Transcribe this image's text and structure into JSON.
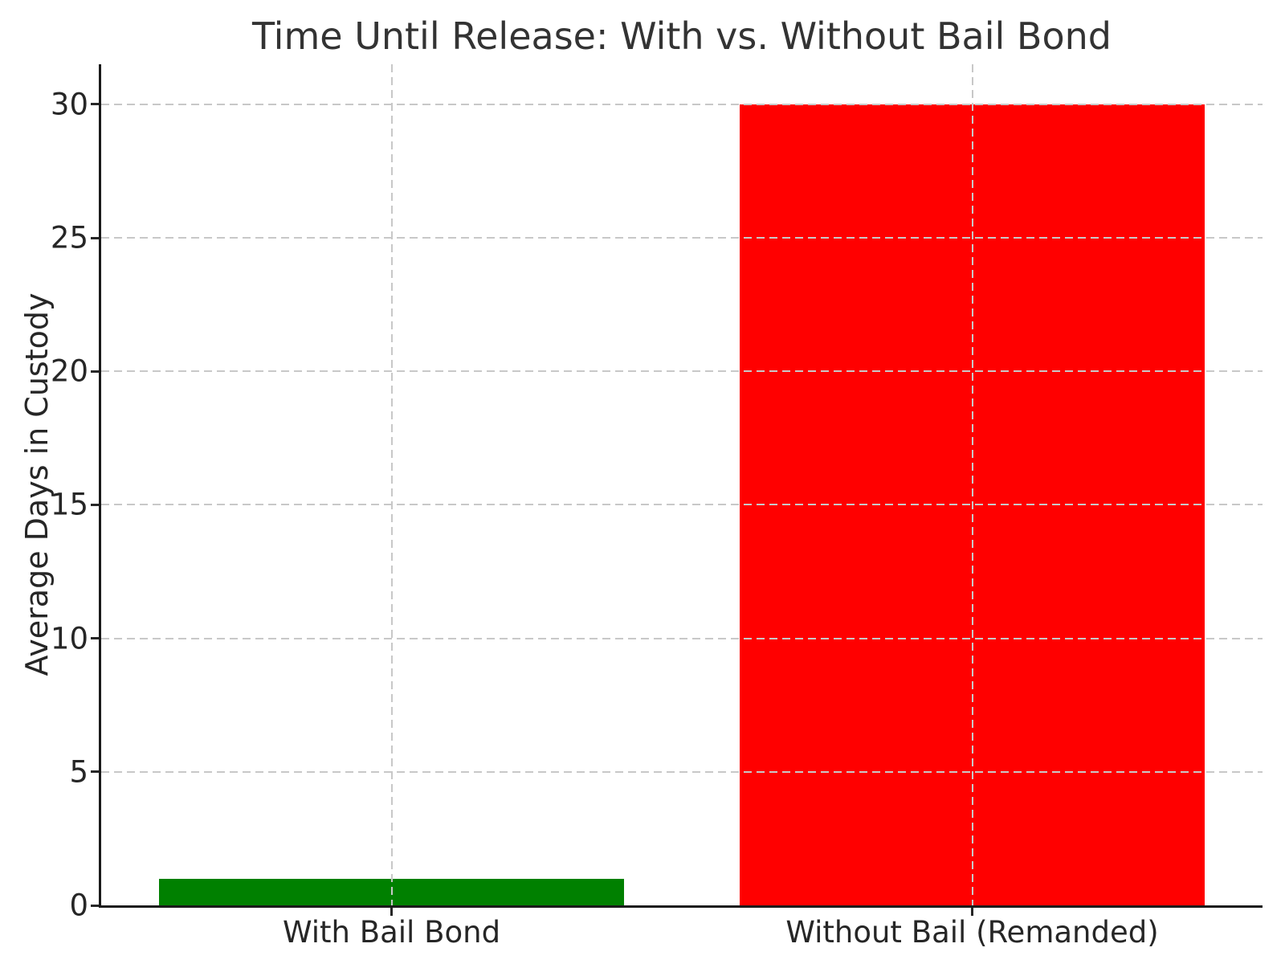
{
  "chart_data": {
    "type": "bar",
    "title": "Time Until Release: With vs. Without Bail Bond",
    "ylabel": "Average Days in Custody",
    "categories": [
      "With Bail Bond",
      "Without Bail (Remanded)"
    ],
    "values": [
      1,
      30
    ],
    "bar_colors": [
      "#008000",
      "#ff0000"
    ],
    "yticks": [
      0,
      5,
      10,
      15,
      20,
      25,
      30
    ],
    "ylim": [
      0,
      31.5
    ],
    "grid": "dashed",
    "grid_color": "#c8c8c8",
    "axis_color": "#1a1a1a",
    "text_color": "#262626",
    "title_color": "#333333",
    "background": "#ffffff",
    "legend": "none"
  }
}
